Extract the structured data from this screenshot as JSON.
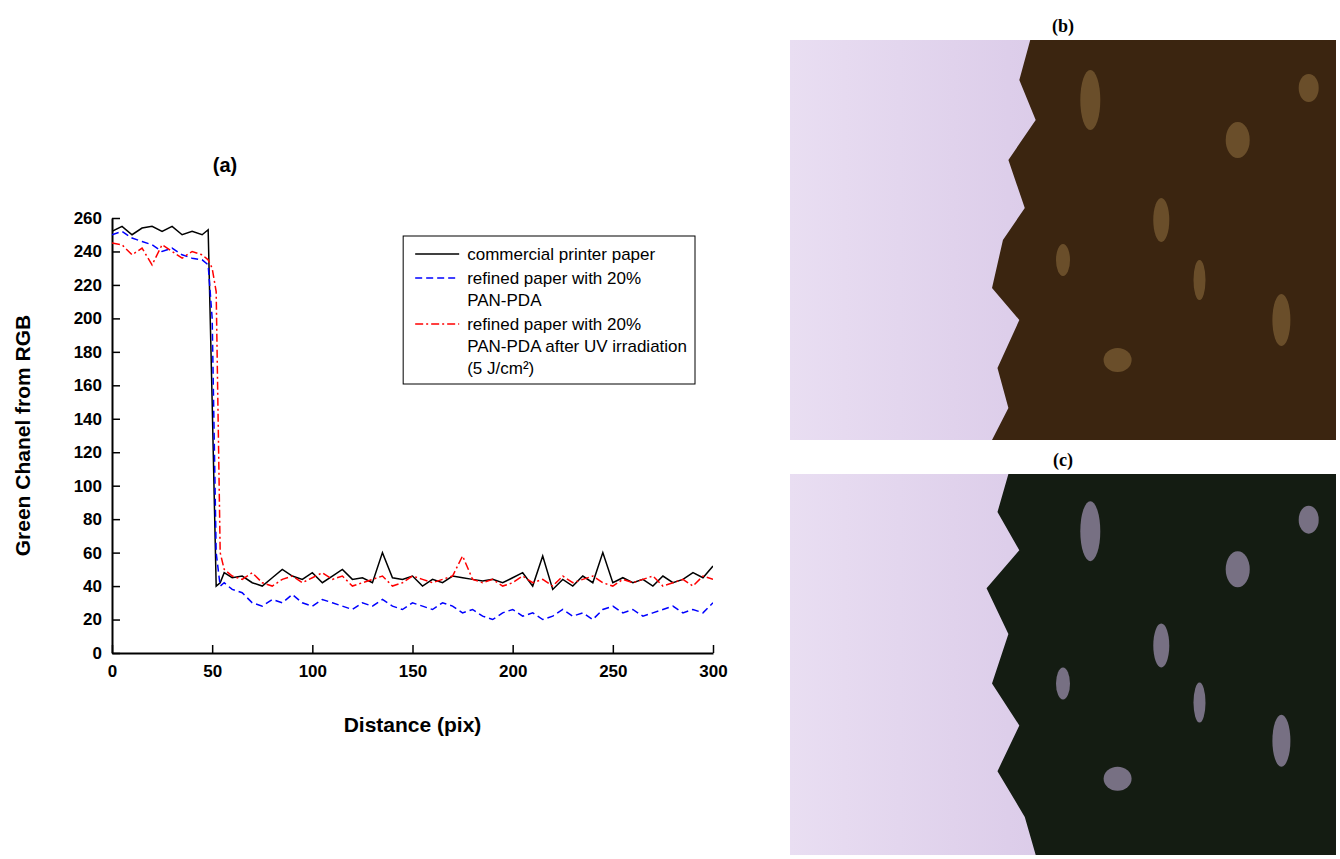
{
  "chart_data": {
    "type": "line",
    "title": "(a)",
    "x_label": "Distance (pix)",
    "y_label": "Green Chanel from RGB",
    "x": [
      0,
      5,
      10,
      15,
      20,
      25,
      30,
      35,
      40,
      45,
      48,
      50,
      52,
      54,
      56,
      60,
      65,
      70,
      75,
      80,
      85,
      90,
      95,
      100,
      105,
      110,
      115,
      120,
      125,
      130,
      135,
      140,
      145,
      150,
      155,
      160,
      165,
      170,
      175,
      180,
      185,
      190,
      195,
      200,
      205,
      210,
      215,
      220,
      225,
      230,
      235,
      240,
      245,
      250,
      255,
      260,
      265,
      270,
      275,
      280,
      285,
      290,
      295,
      300
    ],
    "series": [
      {
        "name": "commercial printer paper",
        "color": "#000000",
        "line_style": "solid",
        "values": [
          252,
          255,
          250,
          254,
          255,
          252,
          255,
          250,
          252,
          250,
          253,
          150,
          40,
          42,
          48,
          45,
          46,
          42,
          40,
          45,
          50,
          46,
          44,
          48,
          42,
          46,
          50,
          44,
          45,
          42,
          60,
          45,
          44,
          46,
          40,
          44,
          42,
          46,
          45,
          44,
          43,
          44,
          42,
          45,
          48,
          40,
          58,
          38,
          44,
          40,
          46,
          42,
          60,
          42,
          45,
          42,
          44,
          40,
          46,
          42,
          44,
          48,
          45,
          52
        ]
      },
      {
        "name": "refined paper with 20% PAN-PDA",
        "color": "#0000ff",
        "line_style": "dashed",
        "values": [
          250,
          252,
          248,
          246,
          244,
          240,
          242,
          238,
          236,
          235,
          232,
          200,
          60,
          40,
          42,
          38,
          36,
          30,
          28,
          32,
          30,
          35,
          30,
          28,
          32,
          30,
          28,
          26,
          30,
          28,
          32,
          28,
          26,
          30,
          28,
          26,
          30,
          28,
          24,
          26,
          22,
          20,
          24,
          26,
          22,
          24,
          20,
          22,
          26,
          22,
          24,
          20,
          26,
          28,
          24,
          26,
          22,
          24,
          26,
          28,
          24,
          26,
          24,
          30
        ]
      },
      {
        "name": "refined paper with 20% PAN-PDA after UV irradiation (5 J/cm²)",
        "color": "#ff0000",
        "line_style": "dashdot",
        "values": [
          245,
          244,
          238,
          242,
          232,
          244,
          240,
          236,
          240,
          238,
          235,
          230,
          216,
          60,
          50,
          46,
          44,
          48,
          42,
          40,
          44,
          46,
          42,
          45,
          48,
          44,
          46,
          40,
          42,
          44,
          46,
          40,
          42,
          46,
          44,
          42,
          44,
          46,
          58,
          44,
          42,
          44,
          40,
          42,
          46,
          42,
          44,
          40,
          46,
          42,
          44,
          46,
          42,
          40,
          44,
          42,
          44,
          46,
          40,
          42,
          44,
          40,
          46,
          44
        ]
      }
    ],
    "xlim": [
      0,
      300
    ],
    "xticks": [
      0,
      50,
      100,
      150,
      200,
      250,
      300
    ],
    "ylim": [
      0,
      260
    ],
    "yticks": [
      0,
      20,
      40,
      60,
      80,
      100,
      120,
      140,
      160,
      180,
      200,
      220,
      240,
      260
    ],
    "legend": "upper right"
  },
  "images": [
    {
      "label": "(b)"
    },
    {
      "label": "(c)"
    }
  ]
}
